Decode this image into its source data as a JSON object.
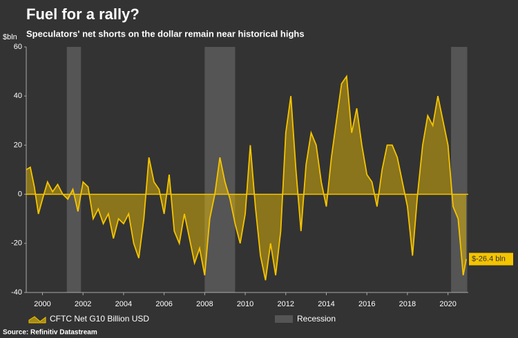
{
  "chart_data": {
    "type": "area-line",
    "title": "Fuel for a rally?",
    "subtitle": "Speculators' net shorts on the dollar remain near historical highs",
    "y_label": "$bln",
    "source": "Source: Refinitiv Datastream",
    "annotation": "$-26.4 bln",
    "x": [
      1999.2,
      1999.4,
      1999.6,
      1999.8,
      2000.0,
      2000.25,
      2000.5,
      2000.75,
      2001.0,
      2001.25,
      2001.5,
      2001.75,
      2002.0,
      2002.25,
      2002.5,
      2002.75,
      2003.0,
      2003.25,
      2003.5,
      2003.75,
      2004.0,
      2004.25,
      2004.5,
      2004.75,
      2005.0,
      2005.25,
      2005.5,
      2005.75,
      2006.0,
      2006.25,
      2006.5,
      2006.75,
      2007.0,
      2007.25,
      2007.5,
      2007.75,
      2008.0,
      2008.25,
      2008.5,
      2008.75,
      2009.0,
      2009.25,
      2009.5,
      2009.75,
      2010.0,
      2010.25,
      2010.5,
      2010.75,
      2011.0,
      2011.25,
      2011.5,
      2011.75,
      2012.0,
      2012.25,
      2012.5,
      2012.75,
      2013.0,
      2013.25,
      2013.5,
      2013.75,
      2014.0,
      2014.25,
      2014.5,
      2014.75,
      2015.0,
      2015.25,
      2015.5,
      2015.75,
      2016.0,
      2016.25,
      2016.5,
      2016.75,
      2017.0,
      2017.25,
      2017.5,
      2017.75,
      2018.0,
      2018.25,
      2018.5,
      2018.75,
      2019.0,
      2019.25,
      2019.5,
      2019.75,
      2020.0,
      2020.25,
      2020.5,
      2020.75,
      2020.9
    ],
    "series": [
      {
        "name": "CFTC Net G10 Billion USD",
        "color": "#f5c400",
        "values": [
          10,
          11,
          3,
          -8,
          -2,
          5,
          1,
          4,
          0,
          -2,
          2,
          -7,
          5,
          3,
          -10,
          -6,
          -12,
          -8,
          -18,
          -10,
          -12,
          -8,
          -20,
          -26,
          -10,
          15,
          5,
          2,
          -8,
          8,
          -15,
          -20,
          -8,
          -18,
          -28,
          -22,
          -33,
          -10,
          0,
          15,
          5,
          -2,
          -12,
          -20,
          -8,
          20,
          -5,
          -25,
          -35,
          -20,
          -33,
          -15,
          25,
          40,
          10,
          -15,
          12,
          25,
          20,
          5,
          -5,
          15,
          30,
          45,
          48,
          25,
          35,
          20,
          8,
          5,
          -5,
          10,
          20,
          20,
          15,
          5,
          -5,
          -25,
          0,
          20,
          32,
          28,
          40,
          30,
          20,
          -5,
          -10,
          -33,
          -26.4
        ]
      }
    ],
    "recession_label": "Recession",
    "recessions": [
      [
        2001.2,
        2001.9
      ],
      [
        2008.0,
        2009.5
      ],
      [
        2020.15,
        2020.95
      ]
    ],
    "xlim": [
      1999.2,
      2021.0
    ],
    "xticks": [
      2000,
      2002,
      2004,
      2006,
      2008,
      2010,
      2012,
      2014,
      2016,
      2018,
      2020
    ],
    "ylim": [
      -40,
      60
    ],
    "yticks": [
      -40,
      -20,
      0,
      20,
      40,
      60
    ]
  }
}
